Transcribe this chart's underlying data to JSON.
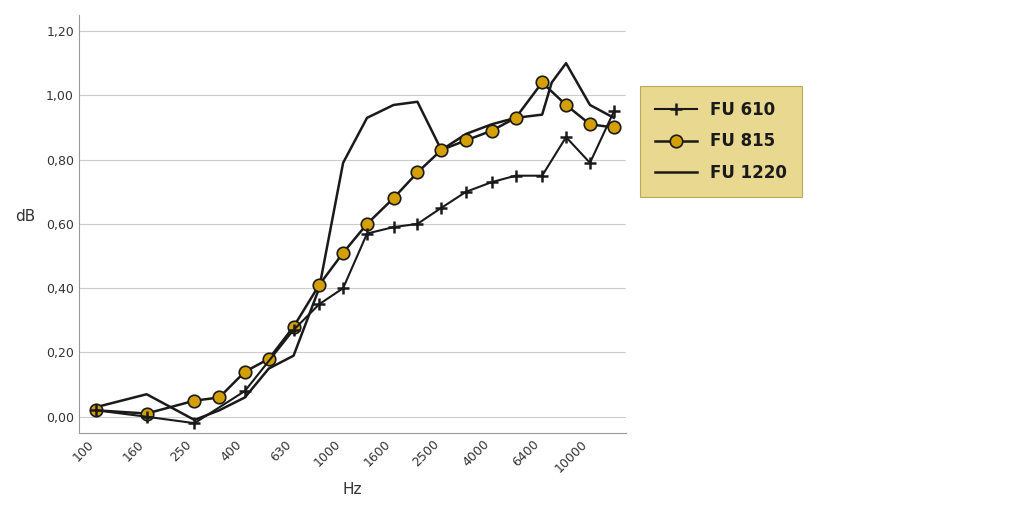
{
  "x_ticks": [
    100,
    160,
    250,
    400,
    630,
    1000,
    1600,
    2500,
    4000,
    6400,
    10000
  ],
  "x_labels": [
    "100",
    "160",
    "250",
    "400",
    "630",
    "1000",
    "1600",
    "2500",
    "4000",
    "6400",
    "10000"
  ],
  "fu610_x": [
    100,
    160,
    250,
    400,
    630,
    800,
    1000,
    1250,
    1600,
    2000,
    2500,
    3150,
    4000,
    5000,
    6400,
    8000,
    10000,
    12500
  ],
  "fu610_y": [
    0.02,
    0.0,
    -0.02,
    0.08,
    0.27,
    0.35,
    0.4,
    0.57,
    0.59,
    0.6,
    0.65,
    0.7,
    0.73,
    0.75,
    0.75,
    0.87,
    0.79,
    0.95
  ],
  "fu815_x": [
    100,
    160,
    250,
    315,
    400,
    500,
    630,
    800,
    1000,
    1250,
    1600,
    2000,
    2500,
    3150,
    4000,
    5000,
    6400,
    8000,
    10000,
    12500
  ],
  "fu815_y": [
    0.02,
    0.01,
    0.05,
    0.06,
    0.14,
    0.18,
    0.28,
    0.41,
    0.51,
    0.6,
    0.68,
    0.76,
    0.83,
    0.86,
    0.89,
    0.93,
    1.04,
    0.97,
    0.91,
    0.9
  ],
  "fu1220_x": [
    100,
    160,
    250,
    315,
    400,
    500,
    630,
    800,
    1000,
    1250,
    1600,
    2000,
    2500,
    3150,
    4000,
    5000,
    6400,
    7000,
    8000,
    10000,
    12500
  ],
  "fu1220_y": [
    0.03,
    0.07,
    -0.01,
    0.02,
    0.06,
    0.15,
    0.19,
    0.4,
    0.79,
    0.93,
    0.97,
    0.98,
    0.83,
    0.88,
    0.91,
    0.93,
    0.94,
    1.04,
    1.1,
    0.97,
    0.93
  ],
  "ylabel": "dB",
  "xlabel": "Hz",
  "ylim": [
    -0.05,
    1.25
  ],
  "yticks": [
    0.0,
    0.2,
    0.4,
    0.6,
    0.8,
    1.0,
    1.2
  ],
  "ytick_labels": [
    "0,00",
    "0,20",
    "0,40",
    "0,60",
    "0,80",
    "1,00",
    "1,20"
  ],
  "legend_labels": [
    "FU 610",
    "FU 815",
    "FU 1220"
  ],
  "line_color": "#1a1a1a",
  "fu815_marker_color": "#d4a000",
  "bg_color": "#ffffff",
  "grid_color": "#cccccc",
  "legend_bg": "#e8d890"
}
